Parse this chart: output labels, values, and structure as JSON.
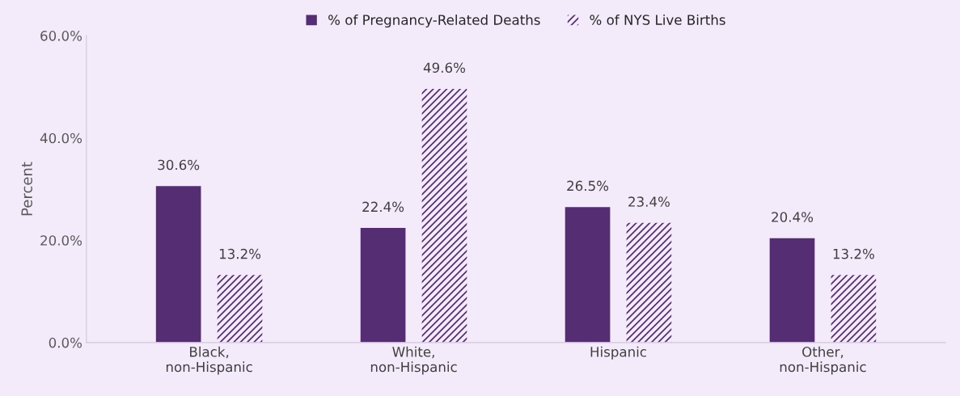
{
  "chart_data": {
    "type": "bar",
    "ylabel": "Percent",
    "categories": [
      "Black,\nnon-Hispanic",
      "White,\nnon-Hispanic",
      "Hispanic",
      "Other,\nnon-Hispanic"
    ],
    "series": [
      {
        "name": "% of Pregnancy-Related Deaths",
        "color": "#552d73",
        "values": [
          30.6,
          22.4,
          26.5,
          20.4
        ],
        "value_labels": [
          "30.6%",
          "22.4%",
          "26.5%",
          "20.4%"
        ]
      },
      {
        "name": "% of NYS Live Births",
        "color": "#552d73",
        "values": [
          13.2,
          49.6,
          23.4,
          13.2
        ],
        "value_labels": [
          "13.2%",
          "49.6%",
          "23.4%",
          "13.2%"
        ]
      }
    ],
    "ylim": [
      0,
      60
    ],
    "yticks": [
      {
        "value": 0,
        "label": "0.0%"
      },
      {
        "value": 20,
        "label": "20.0%"
      },
      {
        "value": 40,
        "label": "40.0%"
      },
      {
        "value": 60,
        "label": "60.0%"
      }
    ],
    "grid": false,
    "legend": "top"
  }
}
